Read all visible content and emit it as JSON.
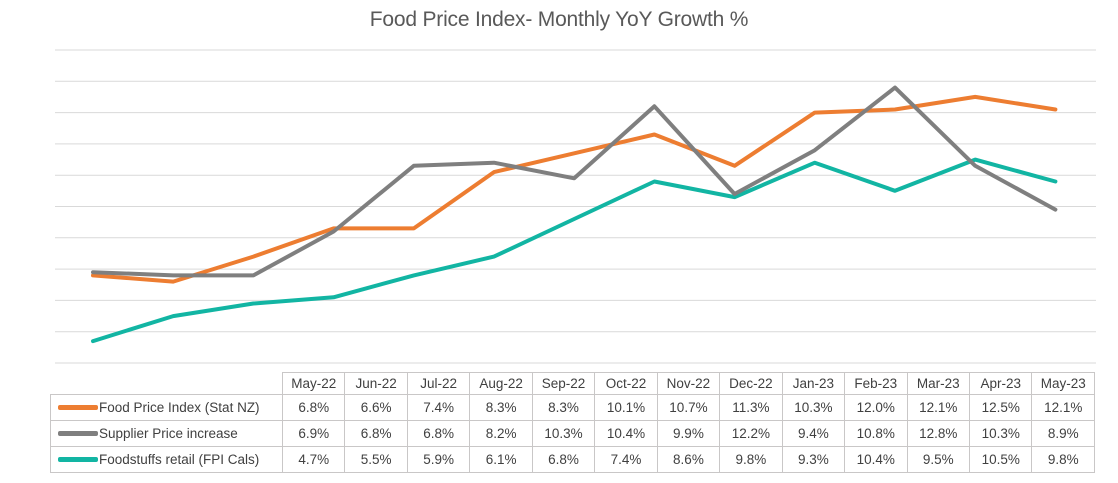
{
  "chart_data": {
    "type": "line",
    "title": "Food Price Index- Monthly YoY Growth %",
    "categories": [
      "May-22",
      "Jun-22",
      "Jul-22",
      "Aug-22",
      "Sep-22",
      "Oct-22",
      "Nov-22",
      "Dec-22",
      "Jan-23",
      "Feb-23",
      "Mar-23",
      "Apr-23",
      "May-23"
    ],
    "series": [
      {
        "name": "Food Price Index (Stat NZ)",
        "color": "#ED7D31",
        "values": [
          6.8,
          6.6,
          7.4,
          8.3,
          8.3,
          10.1,
          10.7,
          11.3,
          10.3,
          12.0,
          12.1,
          12.5,
          12.1
        ]
      },
      {
        "name": "Supplier Price increase",
        "color": "#7F7F7F",
        "values": [
          6.9,
          6.8,
          6.8,
          8.2,
          10.3,
          10.4,
          9.9,
          12.2,
          9.4,
          10.8,
          12.8,
          10.3,
          8.9
        ]
      },
      {
        "name": "Foodstuffs retail (FPI Cals)",
        "color": "#12B5A3",
        "values": [
          4.7,
          5.5,
          5.9,
          6.1,
          6.8,
          7.4,
          8.6,
          9.8,
          9.3,
          10.4,
          9.5,
          10.5,
          9.8
        ]
      }
    ],
    "xlabel": "",
    "ylabel": "",
    "ylim": [
      4,
      14
    ],
    "y_gridline_step": 1,
    "grid": true,
    "axis_tick_labels_visible": false,
    "legend_position": "data-table-left",
    "value_format": "0.0%",
    "gridline_color": "#D9D9D9",
    "title_color": "#595959",
    "table_text_color": "#404040"
  }
}
